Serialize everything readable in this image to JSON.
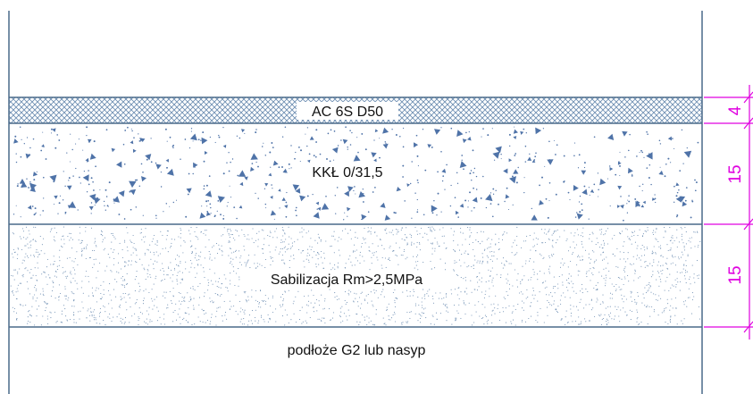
{
  "diagram": {
    "layers": [
      {
        "name": "AC 6S D50",
        "thickness": "4",
        "pattern": "crosshatch"
      },
      {
        "name": "KKŁ 0/31,5",
        "thickness": "15",
        "pattern": "aggregate"
      },
      {
        "name": "Sabilizacja Rm>2,5MPa",
        "thickness": "15",
        "pattern": "stipple"
      }
    ],
    "subgrade_label": "podłoże G2 lub nasyp"
  },
  "colors": {
    "outline": "#4a6a8a",
    "hatch": "#6f8fb3",
    "aggregate": "#4f73a8",
    "dimension": "#e000e0",
    "text": "#111111"
  }
}
